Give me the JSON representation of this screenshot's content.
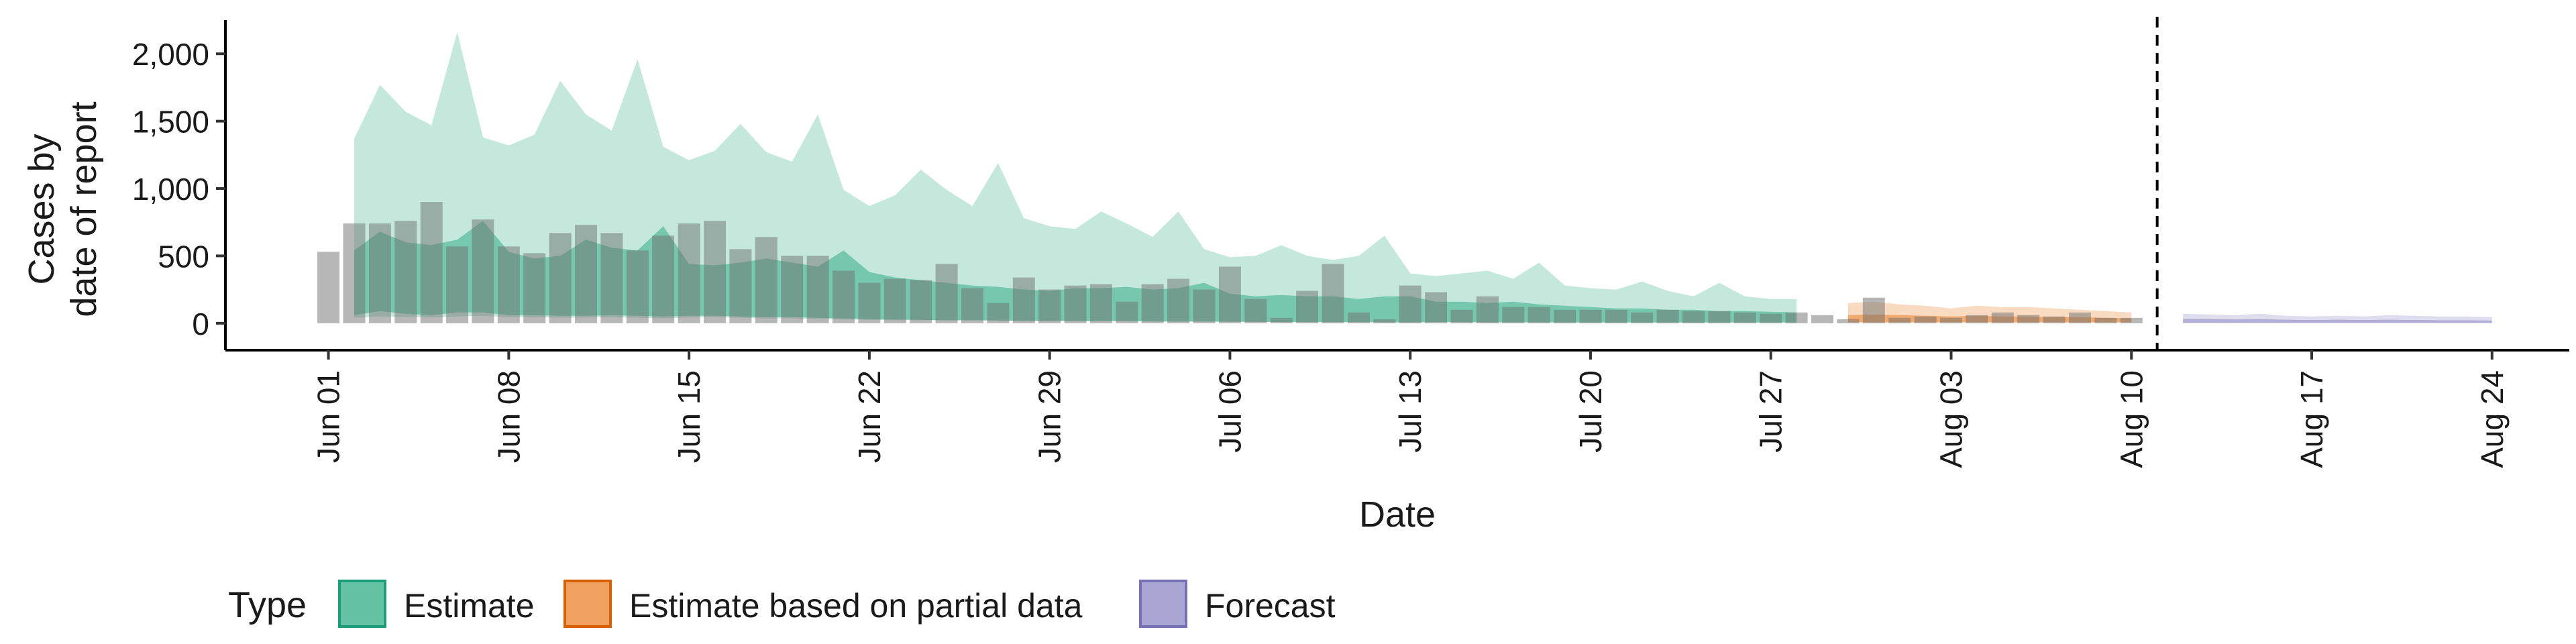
{
  "chart_data": {
    "type": "area",
    "xlabel": "Date",
    "ylabel_lines": [
      "Cases by",
      "date of report"
    ],
    "x_range": [
      "2020-05-28",
      "2020-08-27"
    ],
    "ylim": [
      -200,
      2250
    ],
    "y_ticks": [
      0,
      500,
      1000,
      1500,
      2000
    ],
    "y_tick_labels": [
      "0",
      "500",
      "1,000",
      "1,500",
      "2,000"
    ],
    "x_ticks": [
      "2020-06-01",
      "2020-06-08",
      "2020-06-15",
      "2020-06-22",
      "2020-06-29",
      "2020-07-06",
      "2020-07-13",
      "2020-07-20",
      "2020-07-27",
      "2020-08-03",
      "2020-08-10",
      "2020-08-17",
      "2020-08-24"
    ],
    "x_tick_labels": [
      "Jun 01",
      "Jun 08",
      "Jun 15",
      "Jun 22",
      "Jun 29",
      "Jul 06",
      "Jul 13",
      "Jul 20",
      "Jul 27",
      "Aug 03",
      "Aug 10",
      "Aug 17",
      "Aug 24"
    ],
    "vline_date": "2020-08-11",
    "legend": {
      "title": "Type",
      "entries": [
        {
          "label": "Estimate",
          "fill": "#66c2a5",
          "stroke": "#1b9e77"
        },
        {
          "label": "Estimate based on partial data",
          "fill": "#f0a05f",
          "stroke": "#d95f02"
        },
        {
          "label": "Forecast",
          "fill": "#a9a6d4",
          "stroke": "#7570b3"
        }
      ],
      "placement": "bottom"
    },
    "reported_cases": {
      "start": "2020-06-01",
      "values": [
        530,
        740,
        740,
        760,
        900,
        570,
        770,
        570,
        520,
        670,
        730,
        670,
        540,
        650,
        740,
        760,
        550,
        640,
        500,
        500,
        390,
        300,
        330,
        320,
        440,
        260,
        150,
        340,
        250,
        280,
        290,
        160,
        290,
        330,
        250,
        420,
        180,
        40,
        240,
        440,
        80,
        30,
        280,
        230,
        100,
        200,
        120,
        120,
        100,
        100,
        100,
        80,
        100,
        90,
        90,
        80,
        70,
        80,
        60,
        30,
        190,
        40,
        50,
        40,
        60,
        80,
        60,
        50,
        80,
        40,
        40
      ]
    },
    "series": [
      {
        "name": "Estimate",
        "color": "#66c2a5",
        "start": "2020-06-02",
        "outer_lower": [
          40,
          50,
          45,
          42,
          50,
          55,
          45,
          45,
          40,
          42,
          45,
          40,
          35,
          42,
          45,
          40,
          35,
          38,
          30,
          28,
          25,
          22,
          22,
          20,
          22,
          20,
          15,
          18,
          15,
          16,
          18,
          14,
          12,
          12,
          12,
          10,
          10,
          8,
          8,
          8,
          6,
          6,
          8,
          8,
          6,
          6,
          6,
          6,
          5,
          5,
          5,
          5,
          5,
          5,
          5,
          5,
          5
        ],
        "outer_upper": [
          1370,
          1770,
          1570,
          1470,
          2160,
          1380,
          1320,
          1400,
          1800,
          1550,
          1430,
          1960,
          1310,
          1210,
          1280,
          1480,
          1270,
          1200,
          1550,
          990,
          870,
          950,
          1140,
          990,
          870,
          1190,
          780,
          720,
          700,
          830,
          740,
          640,
          830,
          550,
          490,
          500,
          580,
          500,
          470,
          500,
          650,
          370,
          350,
          370,
          390,
          330,
          450,
          280,
          260,
          250,
          310,
          240,
          200,
          300,
          200,
          180,
          180
        ],
        "inner_lower": [
          60,
          90,
          70,
          60,
          80,
          80,
          60,
          60,
          55,
          55,
          60,
          55,
          50,
          55,
          55,
          50,
          45,
          45,
          40,
          35,
          30,
          28,
          25,
          22,
          22,
          20,
          18,
          18,
          15,
          15,
          15,
          12,
          12,
          12,
          10,
          10,
          8,
          8,
          8,
          8,
          6,
          6,
          8,
          8,
          6,
          6,
          6,
          6,
          5,
          5,
          5,
          5,
          5,
          5,
          5,
          5,
          5
        ],
        "inner_upper": [
          540,
          680,
          600,
          580,
          620,
          760,
          530,
          480,
          500,
          620,
          560,
          540,
          720,
          440,
          430,
          450,
          480,
          450,
          420,
          540,
          380,
          340,
          320,
          300,
          280,
          270,
          250,
          240,
          260,
          260,
          270,
          250,
          260,
          300,
          220,
          200,
          210,
          200,
          200,
          180,
          200,
          200,
          160,
          160,
          150,
          160,
          140,
          130,
          120,
          110,
          110,
          100,
          100,
          90,
          90,
          85,
          80
        ]
      },
      {
        "name": "Estimate based on partial data",
        "color": "#f0a05f",
        "start": "2020-07-30",
        "outer_lower": [
          2,
          2,
          2,
          2,
          2,
          2,
          2,
          2,
          2,
          2,
          2,
          2
        ],
        "outer_upper": [
          150,
          160,
          140,
          130,
          110,
          130,
          120,
          120,
          110,
          100,
          90,
          80
        ],
        "inner_lower": [
          8,
          8,
          8,
          8,
          8,
          8,
          8,
          8,
          8,
          8,
          8,
          8
        ],
        "inner_upper": [
          60,
          65,
          60,
          55,
          50,
          55,
          50,
          50,
          45,
          45,
          40,
          35
        ]
      },
      {
        "name": "Forecast",
        "color": "#a9a6d4",
        "start": "2020-08-12",
        "outer_lower": [
          0,
          0,
          0,
          0,
          0,
          0,
          0,
          0,
          0,
          0,
          0,
          0,
          0
        ],
        "outer_upper": [
          70,
          65,
          60,
          70,
          55,
          50,
          55,
          50,
          60,
          55,
          50,
          50,
          45
        ],
        "inner_lower": [
          3,
          3,
          3,
          3,
          3,
          3,
          3,
          3,
          3,
          3,
          3,
          3,
          3
        ],
        "inner_upper": [
          30,
          30,
          28,
          30,
          26,
          24,
          26,
          24,
          26,
          24,
          22,
          22,
          20
        ]
      }
    ]
  }
}
